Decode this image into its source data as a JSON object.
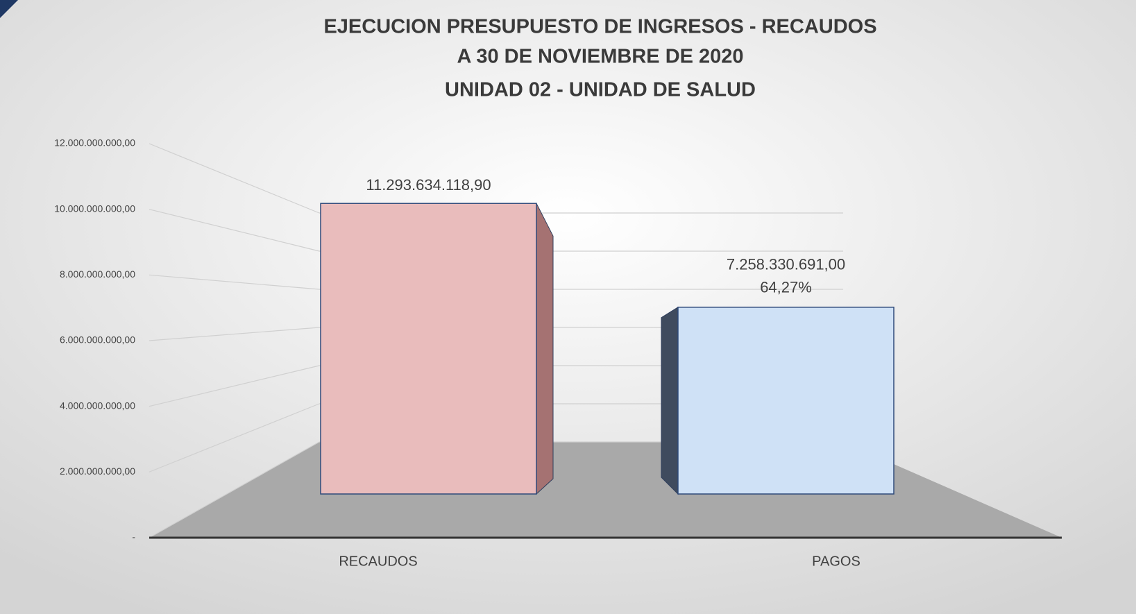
{
  "chart_data": {
    "type": "bar3d",
    "title": [
      "EJECUCION PRESUPUESTO DE INGRESOS - RECAUDOS",
      "A 30 DE NOVIEMBRE DE 2020",
      "UNIDAD 02 - UNIDAD DE SALUD"
    ],
    "categories": [
      "RECAUDOS",
      "PAGOS"
    ],
    "values": [
      11293634118.9,
      7258330691.0
    ],
    "value_labels": [
      "11.293.634.118,90",
      "7.258.330.691,00"
    ],
    "percent_labels": [
      null,
      "64,27%"
    ],
    "colors": [
      "#e9bcbc",
      "#cfe1f6"
    ],
    "ylim": [
      0,
      12000000000
    ],
    "yticks": [
      {
        "value": 0,
        "label": "-"
      },
      {
        "value": 2000000000,
        "label": "2.000.000.000,00"
      },
      {
        "value": 4000000000,
        "label": "4.000.000.000,00"
      },
      {
        "value": 6000000000,
        "label": "6.000.000.000,00"
      },
      {
        "value": 8000000000,
        "label": "8.000.000.000,00"
      },
      {
        "value": 10000000000,
        "label": "10.000.000.000,00"
      },
      {
        "value": 12000000000,
        "label": "12.000.000.000,00"
      }
    ],
    "grid": true
  }
}
